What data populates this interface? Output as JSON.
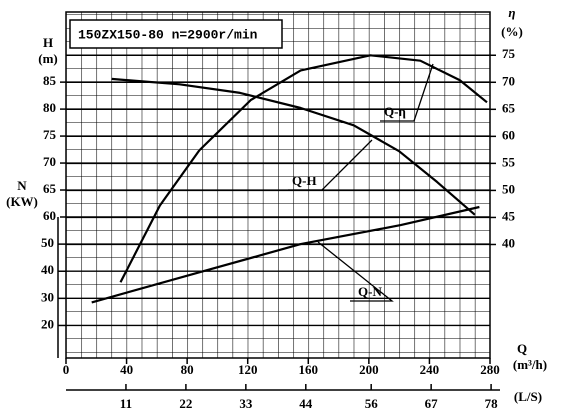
{
  "chart_data": {
    "type": "line",
    "title": "150ZX150-80 n=2900r/min",
    "x_label": "Q",
    "x_unit": "(m³/h)",
    "x2_unit": "(L/S)",
    "y_label": "H",
    "y_unit": "(m)",
    "n_label": "N",
    "n_unit": "(KW)",
    "y2_label": "η",
    "y2_unit": "(%)",
    "xlim": [
      0,
      280
    ],
    "xticks": [
      0,
      40,
      80,
      120,
      160,
      200,
      240,
      280
    ],
    "x2lim": [
      0,
      77.8
    ],
    "x2ticks": [
      11,
      22,
      33,
      44,
      56,
      67,
      78
    ],
    "ylim": [
      60,
      98
    ],
    "yticks": [
      60,
      65,
      70,
      75,
      80,
      85
    ],
    "nlim": [
      8,
      60
    ],
    "nticks": [
      20,
      30,
      40,
      50
    ],
    "y2lim": [
      19,
      83
    ],
    "y2ticks": [
      40,
      45,
      50,
      55,
      60,
      65,
      70,
      75
    ],
    "grid": true,
    "series": [
      {
        "name": "Q-H",
        "axis": "y",
        "color": "#000000",
        "x": [
          30,
          75,
          115,
          155,
          190,
          220,
          245,
          270
        ],
        "values": [
          85.6,
          84.6,
          83,
          80.2,
          77,
          72.2,
          66.5,
          60.4
        ]
      },
      {
        "name": "Q-η",
        "axis": "y2",
        "color": "#000000",
        "x": [
          36,
          62,
          88,
          122,
          155,
          201,
          234,
          260,
          278
        ],
        "values": [
          33,
          47.2,
          57.4,
          66.7,
          72.2,
          75,
          74,
          70.4,
          66.3
        ]
      },
      {
        "name": "Q-N",
        "axis": "n",
        "color": "#000000",
        "x": [
          17,
          88,
          155,
          221,
          273
        ],
        "values": [
          28.5,
          39.6,
          50,
          57,
          63.7
        ]
      }
    ]
  }
}
